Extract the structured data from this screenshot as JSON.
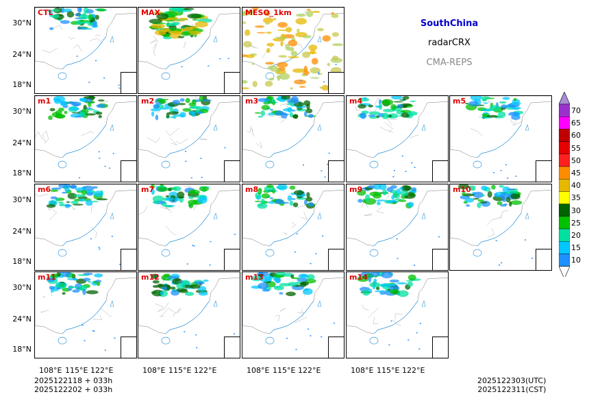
{
  "header": {
    "region": "SouthChina",
    "variable": "radarCRX",
    "system": "CMA-REPS",
    "region_color": "#0000cc",
    "system_color": "#888888"
  },
  "panels": [
    "CTL",
    "MAX",
    "MESO_1km",
    "m1",
    "m2",
    "m3",
    "m4",
    "m5",
    "m6",
    "m7",
    "m8",
    "m9",
    "m10",
    "m11",
    "m12",
    "m13",
    "m14"
  ],
  "lat_labels": [
    "30°N",
    "24°N",
    "18°N"
  ],
  "lon_labels": [
    "108°E",
    "115°E",
    "122°E"
  ],
  "footer": {
    "init_utc": "2025122118  +  033h",
    "init_cst": "2025122202  +  033h",
    "valid_utc": "2025122303(UTC)",
    "valid_cst": "2025122311(CST)"
  },
  "colorbar": {
    "levels": [
      "70",
      "65",
      "60",
      "55",
      "50",
      "45",
      "40",
      "35",
      "30",
      "25",
      "20",
      "15",
      "10"
    ],
    "colors": [
      "#9932cc",
      "#ff00ff",
      "#c00000",
      "#e80000",
      "#ff2020",
      "#ff8c00",
      "#e6b800",
      "#ffff00",
      "#006400",
      "#00c000",
      "#00e0a0",
      "#00c8ff",
      "#1e90ff"
    ],
    "over_color": "#a98bd6",
    "under_color": "#ffffff"
  }
}
